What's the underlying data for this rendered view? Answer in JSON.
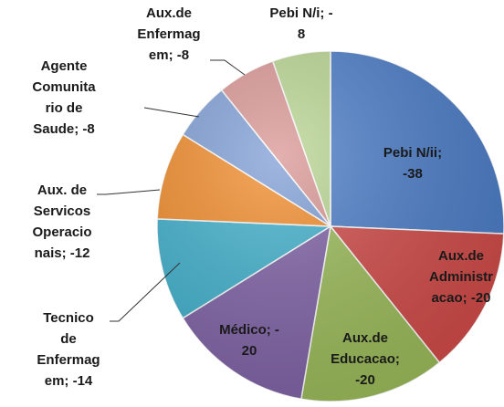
{
  "chart_data": {
    "type": "pie",
    "data_labels": [
      "Pebi N/ii; -38",
      "Aux.de Administracao; -20",
      "Aux.de Educacao; -20",
      "Médico; -20",
      "Tecnico de Enfermagem; -14",
      "Aux. de Servicos Operacionais; -12",
      "Agente Comunitario de Saude; -8",
      "Aux.de Enfermagem; -8",
      "Pebi N/i; -8"
    ],
    "values": [
      -38,
      -20,
      -20,
      -20,
      -14,
      -12,
      -8,
      -8,
      -8
    ],
    "colors": [
      "#4a7cc7",
      "#d04a47",
      "#9bbb59",
      "#7f62a6",
      "#3fb0cc",
      "#f28c2a",
      "#7f9fd6",
      "#d99694",
      "#b9d591"
    ]
  }
}
